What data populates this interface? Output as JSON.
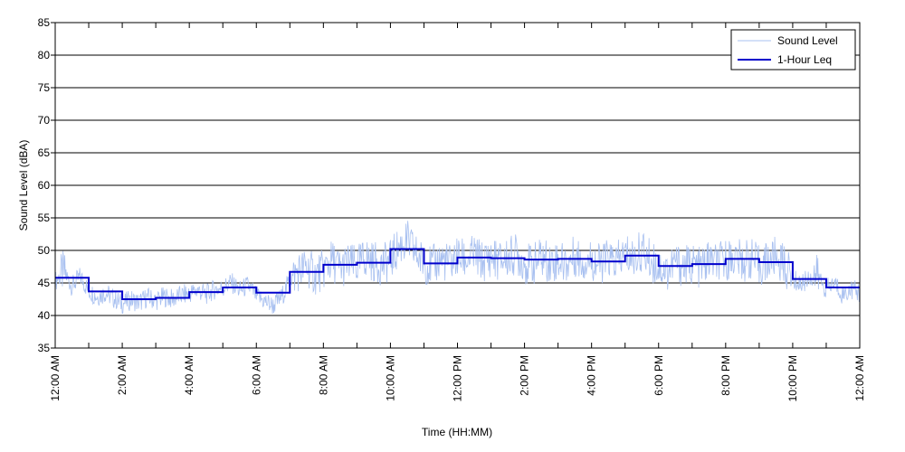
{
  "chart_data": {
    "type": "line",
    "xlabel": "Time (HH:MM)",
    "ylabel": "Sound Level (dBA)",
    "xlim": [
      0,
      24
    ],
    "ylim": [
      35,
      85
    ],
    "yticks": [
      35,
      40,
      45,
      50,
      55,
      60,
      65,
      70,
      75,
      80,
      85
    ],
    "xtick_labels": [
      {
        "hour": 0,
        "label": "12:00 AM"
      },
      {
        "hour": 2,
        "label": "2:00 AM"
      },
      {
        "hour": 4,
        "label": "4:00 AM"
      },
      {
        "hour": 6,
        "label": "6:00 AM"
      },
      {
        "hour": 8,
        "label": "8:00 AM"
      },
      {
        "hour": 10,
        "label": "10:00 AM"
      },
      {
        "hour": 12,
        "label": "12:00 PM"
      },
      {
        "hour": 14,
        "label": "2:00 PM"
      },
      {
        "hour": 16,
        "label": "4:00 PM"
      },
      {
        "hour": 18,
        "label": "6:00 PM"
      },
      {
        "hour": 20,
        "label": "8:00 PM"
      },
      {
        "hour": 22,
        "label": "10:00 PM"
      },
      {
        "hour": 24,
        "label": "12:00 AM"
      }
    ],
    "grid": "horizontal",
    "legend_position": "top-right",
    "series": [
      {
        "name": "Sound Level",
        "color": "#a8c0f0",
        "style": "thin-line",
        "x": [
          0.0,
          0.25,
          0.5,
          0.75,
          1.0,
          1.25,
          1.5,
          1.75,
          2.0,
          2.25,
          2.5,
          2.75,
          3.0,
          3.25,
          3.5,
          3.75,
          4.0,
          4.25,
          4.5,
          4.75,
          5.0,
          5.25,
          5.5,
          5.75,
          6.0,
          6.25,
          6.5,
          6.75,
          7.0,
          7.25,
          7.5,
          7.75,
          8.0,
          8.25,
          8.5,
          8.75,
          9.0,
          9.25,
          9.5,
          9.75,
          10.0,
          10.25,
          10.5,
          10.75,
          11.0,
          11.25,
          11.5,
          11.75,
          12.0,
          12.25,
          12.5,
          12.75,
          13.0,
          13.25,
          13.5,
          13.75,
          14.0,
          14.25,
          14.5,
          14.75,
          15.0,
          15.25,
          15.5,
          15.75,
          16.0,
          16.25,
          16.5,
          16.75,
          17.0,
          17.25,
          17.5,
          17.75,
          18.0,
          18.25,
          18.5,
          18.75,
          19.0,
          19.25,
          19.5,
          19.75,
          20.0,
          20.25,
          20.5,
          20.75,
          21.0,
          21.25,
          21.5,
          21.75,
          22.0,
          22.25,
          22.5,
          22.75,
          23.0,
          23.25,
          23.5,
          23.75,
          24.0
        ],
        "values": [
          45.2,
          46.8,
          44.5,
          46.0,
          43.8,
          42.9,
          43.5,
          42.6,
          41.8,
          42.4,
          42.0,
          42.8,
          42.3,
          42.9,
          42.5,
          43.1,
          43.4,
          43.9,
          43.2,
          44.0,
          44.2,
          45.1,
          43.8,
          44.6,
          43.0,
          42.2,
          41.5,
          42.8,
          45.5,
          46.8,
          47.5,
          46.2,
          47.0,
          48.5,
          47.2,
          48.0,
          47.5,
          49.0,
          48.2,
          47.8,
          48.5,
          50.5,
          51.5,
          49.5,
          48.0,
          47.5,
          48.8,
          47.9,
          49.0,
          48.5,
          49.3,
          48.2,
          49.0,
          48.4,
          48.8,
          49.5,
          48.0,
          47.8,
          48.9,
          48.2,
          48.5,
          47.9,
          49.2,
          48.3,
          48.6,
          47.8,
          48.8,
          48.1,
          49.5,
          48.8,
          50.0,
          48.5,
          47.5,
          46.8,
          48.2,
          47.5,
          48.0,
          47.2,
          48.5,
          47.9,
          48.5,
          49.0,
          48.2,
          48.8,
          47.5,
          48.3,
          49.0,
          47.8,
          45.5,
          44.8,
          45.9,
          46.2,
          44.0,
          45.0,
          43.2,
          44.1,
          43.5
        ]
      },
      {
        "name": "1-Hour Leq",
        "color": "#0000cc",
        "style": "step",
        "x": [
          0,
          1,
          2,
          3,
          4,
          5,
          6,
          7,
          8,
          9,
          10,
          11,
          12,
          13,
          14,
          15,
          16,
          17,
          18,
          19,
          20,
          21,
          22,
          23,
          24
        ],
        "values": [
          45.8,
          43.7,
          42.5,
          42.7,
          43.6,
          44.3,
          43.5,
          46.7,
          47.8,
          48.1,
          50.2,
          48.0,
          48.9,
          48.8,
          48.6,
          48.7,
          48.3,
          49.2,
          47.6,
          47.9,
          48.7,
          48.2,
          45.6,
          44.3,
          44.3
        ]
      }
    ]
  }
}
